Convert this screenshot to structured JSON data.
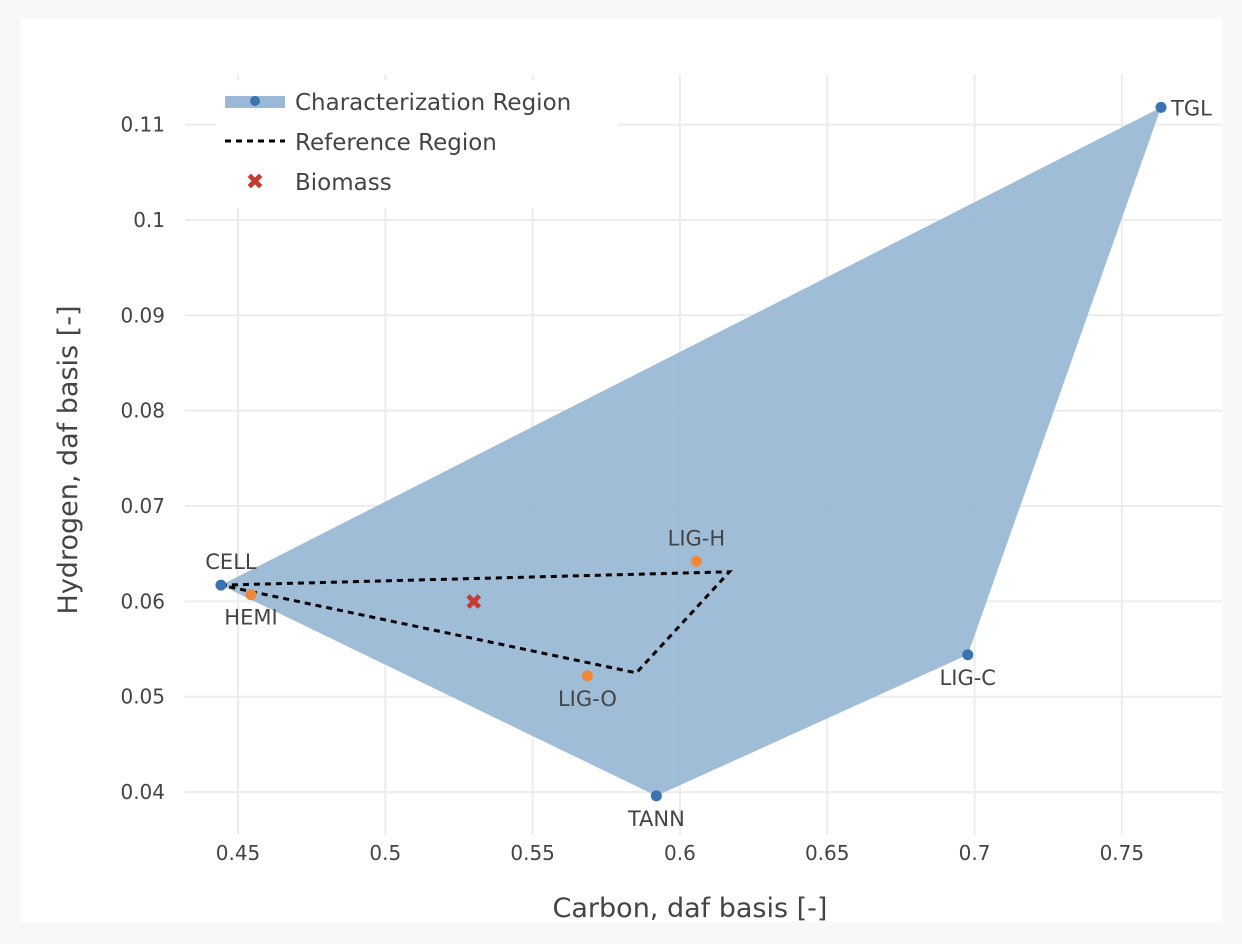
{
  "chart_data": {
    "type": "scatter",
    "xlabel": "Carbon, daf basis [-]",
    "ylabel": "Hydrogen, daf basis [-]",
    "xlim": [
      0.432,
      0.784
    ],
    "ylim": [
      0.0355,
      0.1152
    ],
    "xticks": [
      0.45,
      0.5,
      0.55,
      0.6,
      0.65,
      0.7,
      0.75
    ],
    "xtick_labels": [
      "0.45",
      "0.5",
      "0.55",
      "0.6",
      "0.65",
      "0.7",
      "0.75"
    ],
    "yticks": [
      0.04,
      0.05,
      0.06,
      0.07,
      0.08,
      0.09,
      0.1,
      0.11
    ],
    "ytick_labels": [
      "0.04",
      "0.05",
      "0.06",
      "0.07",
      "0.08",
      "0.09",
      "0.1",
      "0.11"
    ],
    "grid": true,
    "legend_position": "top-left",
    "legend": [
      "Characterization Region",
      "Reference Region",
      "Biomass"
    ],
    "colors": {
      "region_fill": "#9bb9d6",
      "region_points": "#3a73b0",
      "reference_points": "#f0883a",
      "reference_line": "#000000",
      "biomass": "#c8392f",
      "grid": "#ececec"
    },
    "characterization_region": [
      {
        "label": "CELL",
        "x": 0.4442,
        "y": 0.0617
      },
      {
        "label": "TGL",
        "x": 0.7633,
        "y": 0.1118
      },
      {
        "label": "LIG-C",
        "x": 0.6977,
        "y": 0.0544
      },
      {
        "label": "TANN",
        "x": 0.592,
        "y": 0.0396
      }
    ],
    "reference_region": [
      {
        "x": 0.4442,
        "y": 0.0617
      },
      {
        "x": 0.6168,
        "y": 0.0631
      },
      {
        "x": 0.5852,
        "y": 0.0525
      },
      {
        "x": 0.4442,
        "y": 0.0617
      }
    ],
    "reference_points": [
      {
        "label": "HEMI",
        "x": 0.4544,
        "y": 0.0607
      },
      {
        "label": "LIG-H",
        "x": 0.6056,
        "y": 0.0642
      },
      {
        "label": "LIG-O",
        "x": 0.5686,
        "y": 0.0522
      }
    ],
    "biomass": {
      "x": 0.53,
      "y": 0.06
    }
  }
}
